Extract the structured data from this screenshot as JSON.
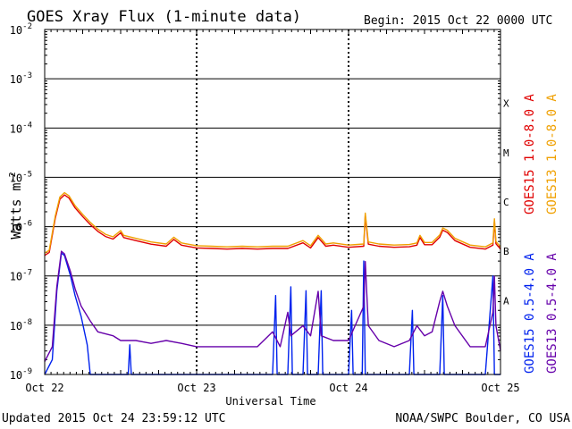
{
  "chart_data": {
    "type": "line",
    "title": "GOES Xray Flux (1-minute data)",
    "begin": "Begin:  2015 Oct 22 0000 UTC",
    "ylabel": "Watts m",
    "ylabel_sup": "-2",
    "xlabel": "Universal Time",
    "yscale": "log",
    "ylim": [
      1e-09,
      0.01
    ],
    "y_ticks": [
      {
        "exp": "-2"
      },
      {
        "exp": "-3"
      },
      {
        "exp": "-4"
      },
      {
        "exp": "-5"
      },
      {
        "exp": "-6"
      },
      {
        "exp": "-7"
      },
      {
        "exp": "-8"
      },
      {
        "exp": "-9"
      }
    ],
    "x_ticks": [
      "Oct 22",
      "Oct 23",
      "Oct 24",
      "Oct 25"
    ],
    "xlim_days": [
      0,
      3
    ],
    "flare_classes": [
      {
        "label": "X",
        "value": 0.0001
      },
      {
        "label": "M",
        "value": 1e-05
      },
      {
        "label": "C",
        "value": 1e-06
      },
      {
        "label": "B",
        "value": 1e-07
      },
      {
        "label": "A",
        "value": 1e-08
      }
    ],
    "series": [
      {
        "name": "GOES15 1.0-8.0 A",
        "color": "#e00000",
        "offset": 0,
        "points": [
          [
            0,
            2.6e-07
          ],
          [
            0.03,
            3e-07
          ],
          [
            0.07,
            1.5e-06
          ],
          [
            0.1,
            3.6e-06
          ],
          [
            0.13,
            4.4e-06
          ],
          [
            0.16,
            3.8e-06
          ],
          [
            0.2,
            2.4e-06
          ],
          [
            0.25,
            1.6e-06
          ],
          [
            0.3,
            1.1e-06
          ],
          [
            0.35,
            8e-07
          ],
          [
            0.4,
            6.3e-07
          ],
          [
            0.45,
            5.6e-07
          ],
          [
            0.5,
            7.5e-07
          ],
          [
            0.52,
            6e-07
          ],
          [
            0.6,
            5.2e-07
          ],
          [
            0.7,
            4.4e-07
          ],
          [
            0.8,
            4e-07
          ],
          [
            0.85,
            5.5e-07
          ],
          [
            0.9,
            4.2e-07
          ],
          [
            1.0,
            3.7e-07
          ],
          [
            1.1,
            3.6e-07
          ],
          [
            1.2,
            3.5e-07
          ],
          [
            1.3,
            3.6e-07
          ],
          [
            1.4,
            3.5e-07
          ],
          [
            1.5,
            3.6e-07
          ],
          [
            1.6,
            3.6e-07
          ],
          [
            1.7,
            4.7e-07
          ],
          [
            1.75,
            3.7e-07
          ],
          [
            1.8,
            6e-07
          ],
          [
            1.85,
            4e-07
          ],
          [
            1.9,
            4.2e-07
          ],
          [
            2.0,
            3.8e-07
          ],
          [
            2.1,
            4e-07
          ],
          [
            2.11,
            1.7e-06
          ],
          [
            2.13,
            4.4e-07
          ],
          [
            2.2,
            4e-07
          ],
          [
            2.3,
            3.8e-07
          ],
          [
            2.4,
            3.9e-07
          ],
          [
            2.45,
            4.2e-07
          ],
          [
            2.47,
            6e-07
          ],
          [
            2.5,
            4.3e-07
          ],
          [
            2.55,
            4.3e-07
          ],
          [
            2.6,
            6.1e-07
          ],
          [
            2.62,
            8.5e-07
          ],
          [
            2.65,
            7.6e-07
          ],
          [
            2.7,
            5.2e-07
          ],
          [
            2.8,
            3.8e-07
          ],
          [
            2.9,
            3.5e-07
          ],
          [
            2.95,
            4.2e-07
          ],
          [
            2.96,
            1.3e-06
          ],
          [
            2.97,
            4.5e-07
          ],
          [
            3.0,
            3.5e-07
          ]
        ]
      },
      {
        "name": "GOES13 1.0-8.0 A",
        "color": "#f0a000",
        "offset": 0.11,
        "points": [
          [
            0,
            2.6e-07
          ],
          [
            0.03,
            3e-07
          ],
          [
            0.07,
            1.5e-06
          ],
          [
            0.1,
            3.6e-06
          ],
          [
            0.13,
            4.4e-06
          ],
          [
            0.16,
            3.8e-06
          ],
          [
            0.2,
            2.4e-06
          ],
          [
            0.25,
            1.6e-06
          ],
          [
            0.3,
            1.1e-06
          ],
          [
            0.35,
            8e-07
          ],
          [
            0.4,
            6.3e-07
          ],
          [
            0.45,
            5.6e-07
          ],
          [
            0.5,
            7.5e-07
          ],
          [
            0.52,
            6e-07
          ],
          [
            0.6,
            5.2e-07
          ],
          [
            0.7,
            4.4e-07
          ],
          [
            0.8,
            4e-07
          ],
          [
            0.85,
            5.5e-07
          ],
          [
            0.9,
            4.2e-07
          ],
          [
            1.0,
            3.7e-07
          ],
          [
            1.1,
            3.6e-07
          ],
          [
            1.2,
            3.5e-07
          ],
          [
            1.3,
            3.6e-07
          ],
          [
            1.4,
            3.5e-07
          ],
          [
            1.5,
            3.6e-07
          ],
          [
            1.6,
            3.6e-07
          ],
          [
            1.7,
            4.7e-07
          ],
          [
            1.75,
            3.7e-07
          ],
          [
            1.8,
            6e-07
          ],
          [
            1.85,
            4e-07
          ],
          [
            1.9,
            4.2e-07
          ],
          [
            2.0,
            3.8e-07
          ],
          [
            2.1,
            4e-07
          ],
          [
            2.11,
            1.7e-06
          ],
          [
            2.13,
            4.4e-07
          ],
          [
            2.2,
            4e-07
          ],
          [
            2.3,
            3.8e-07
          ],
          [
            2.4,
            3.9e-07
          ],
          [
            2.45,
            4.2e-07
          ],
          [
            2.47,
            6e-07
          ],
          [
            2.5,
            4.3e-07
          ],
          [
            2.55,
            4.3e-07
          ],
          [
            2.6,
            6.1e-07
          ],
          [
            2.62,
            8.5e-07
          ],
          [
            2.65,
            7.6e-07
          ],
          [
            2.7,
            5.2e-07
          ],
          [
            2.8,
            3.8e-07
          ],
          [
            2.9,
            3.5e-07
          ],
          [
            2.95,
            4.2e-07
          ],
          [
            2.96,
            1.3e-06
          ],
          [
            2.97,
            4.5e-07
          ],
          [
            3.0,
            3.5e-07
          ]
        ]
      },
      {
        "name": "GOES15 0.5-4.0 A",
        "color": "#0022ee",
        "offset": 0,
        "points": [
          [
            0,
            1e-09
          ],
          [
            0.05,
            2e-09
          ],
          [
            0.08,
            5e-08
          ],
          [
            0.11,
            2.9e-07
          ],
          [
            0.13,
            2.6e-07
          ],
          [
            0.17,
            1e-07
          ],
          [
            0.2,
            4e-08
          ],
          [
            0.24,
            1.5e-08
          ],
          [
            0.28,
            4e-09
          ],
          [
            0.3,
            1e-09
          ],
          [
            0.55,
            1e-09
          ],
          [
            0.56,
            4e-09
          ],
          [
            0.57,
            1e-09
          ],
          [
            1.5,
            1e-09
          ],
          [
            1.52,
            4e-08
          ],
          [
            1.53,
            1e-09
          ],
          [
            1.6,
            1e-09
          ],
          [
            1.62,
            6e-08
          ],
          [
            1.63,
            1e-09
          ],
          [
            1.7,
            1e-09
          ],
          [
            1.72,
            5e-08
          ],
          [
            1.73,
            1e-09
          ],
          [
            1.8,
            1e-09
          ],
          [
            1.82,
            5e-08
          ],
          [
            1.83,
            1e-09
          ],
          [
            2.0,
            1e-09
          ],
          [
            2.02,
            2e-08
          ],
          [
            2.03,
            1e-09
          ],
          [
            2.09,
            1e-09
          ],
          [
            2.1,
            2e-07
          ],
          [
            2.11,
            1e-09
          ],
          [
            2.4,
            1e-09
          ],
          [
            2.42,
            2e-08
          ],
          [
            2.43,
            1e-09
          ],
          [
            2.6,
            1e-09
          ],
          [
            2.62,
            4e-08
          ],
          [
            2.63,
            1e-09
          ],
          [
            2.9,
            1e-09
          ],
          [
            2.95,
            1e-07
          ],
          [
            2.96,
            1e-09
          ],
          [
            3.0,
            1e-09
          ]
        ]
      },
      {
        "name": "GOES13 0.5-4.0 A",
        "color": "#6600aa",
        "offset": 0.22,
        "points": [
          [
            0,
            1.5e-09
          ],
          [
            0.05,
            3e-09
          ],
          [
            0.08,
            5e-08
          ],
          [
            0.11,
            2.6e-07
          ],
          [
            0.13,
            2.3e-07
          ],
          [
            0.17,
            1e-07
          ],
          [
            0.2,
            4.5e-08
          ],
          [
            0.24,
            2e-08
          ],
          [
            0.3,
            1e-08
          ],
          [
            0.35,
            6e-09
          ],
          [
            0.45,
            5e-09
          ],
          [
            0.5,
            4e-09
          ],
          [
            0.6,
            4e-09
          ],
          [
            0.7,
            3.5e-09
          ],
          [
            0.8,
            4e-09
          ],
          [
            0.9,
            3.5e-09
          ],
          [
            1.0,
            3e-09
          ],
          [
            1.2,
            3e-09
          ],
          [
            1.4,
            3e-09
          ],
          [
            1.5,
            6e-09
          ],
          [
            1.55,
            3e-09
          ],
          [
            1.6,
            1.5e-08
          ],
          [
            1.62,
            5e-09
          ],
          [
            1.7,
            8e-09
          ],
          [
            1.75,
            5e-09
          ],
          [
            1.8,
            4e-08
          ],
          [
            1.82,
            5e-09
          ],
          [
            1.9,
            4e-09
          ],
          [
            2.0,
            4e-09
          ],
          [
            2.1,
            2e-08
          ],
          [
            2.11,
            1.6e-07
          ],
          [
            2.13,
            8e-09
          ],
          [
            2.2,
            4e-09
          ],
          [
            2.3,
            3e-09
          ],
          [
            2.4,
            4e-09
          ],
          [
            2.45,
            8e-09
          ],
          [
            2.5,
            5e-09
          ],
          [
            2.55,
            6e-09
          ],
          [
            2.6,
            2.5e-08
          ],
          [
            2.62,
            4e-08
          ],
          [
            2.65,
            2e-08
          ],
          [
            2.7,
            8e-09
          ],
          [
            2.8,
            3e-09
          ],
          [
            2.9,
            3e-09
          ],
          [
            2.95,
            1.5e-08
          ],
          [
            2.96,
            8e-08
          ],
          [
            2.97,
            8e-09
          ],
          [
            3.0,
            2.5e-09
          ]
        ]
      }
    ]
  },
  "footer": {
    "updated": "Updated 2015 Oct 24 23:59:12 UTC",
    "credit": "NOAA/SWPC Boulder, CO USA"
  }
}
